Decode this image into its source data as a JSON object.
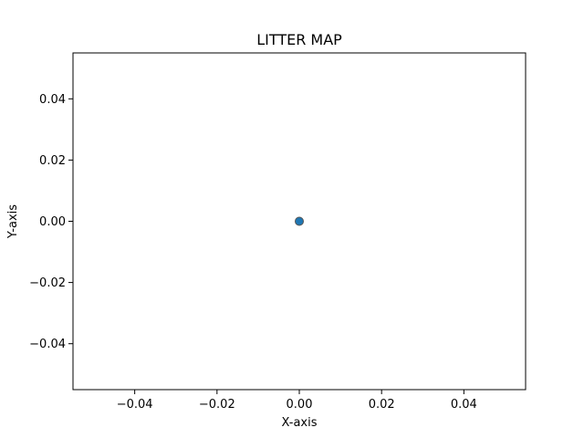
{
  "chart_data": {
    "type": "scatter",
    "title": "LITTER MAP",
    "xlabel": "X-axis",
    "ylabel": "Y-axis",
    "xlim": [
      -0.055,
      0.055
    ],
    "ylim": [
      -0.055,
      0.055
    ],
    "xticks": [
      -0.04,
      -0.02,
      0.0,
      0.02,
      0.04
    ],
    "yticks": [
      -0.04,
      -0.02,
      0.0,
      0.02,
      0.04
    ],
    "xtick_labels": [
      "−0.04",
      "−0.02",
      "0.00",
      "0.02",
      "0.04"
    ],
    "ytick_labels": [
      "−0.04",
      "−0.02",
      "0.00",
      "0.02",
      "0.04"
    ],
    "grid": false,
    "series": [
      {
        "x": [
          0.0
        ],
        "y": [
          0.0
        ],
        "color": "#1f77b4",
        "edgecolor": "#555555"
      }
    ]
  }
}
